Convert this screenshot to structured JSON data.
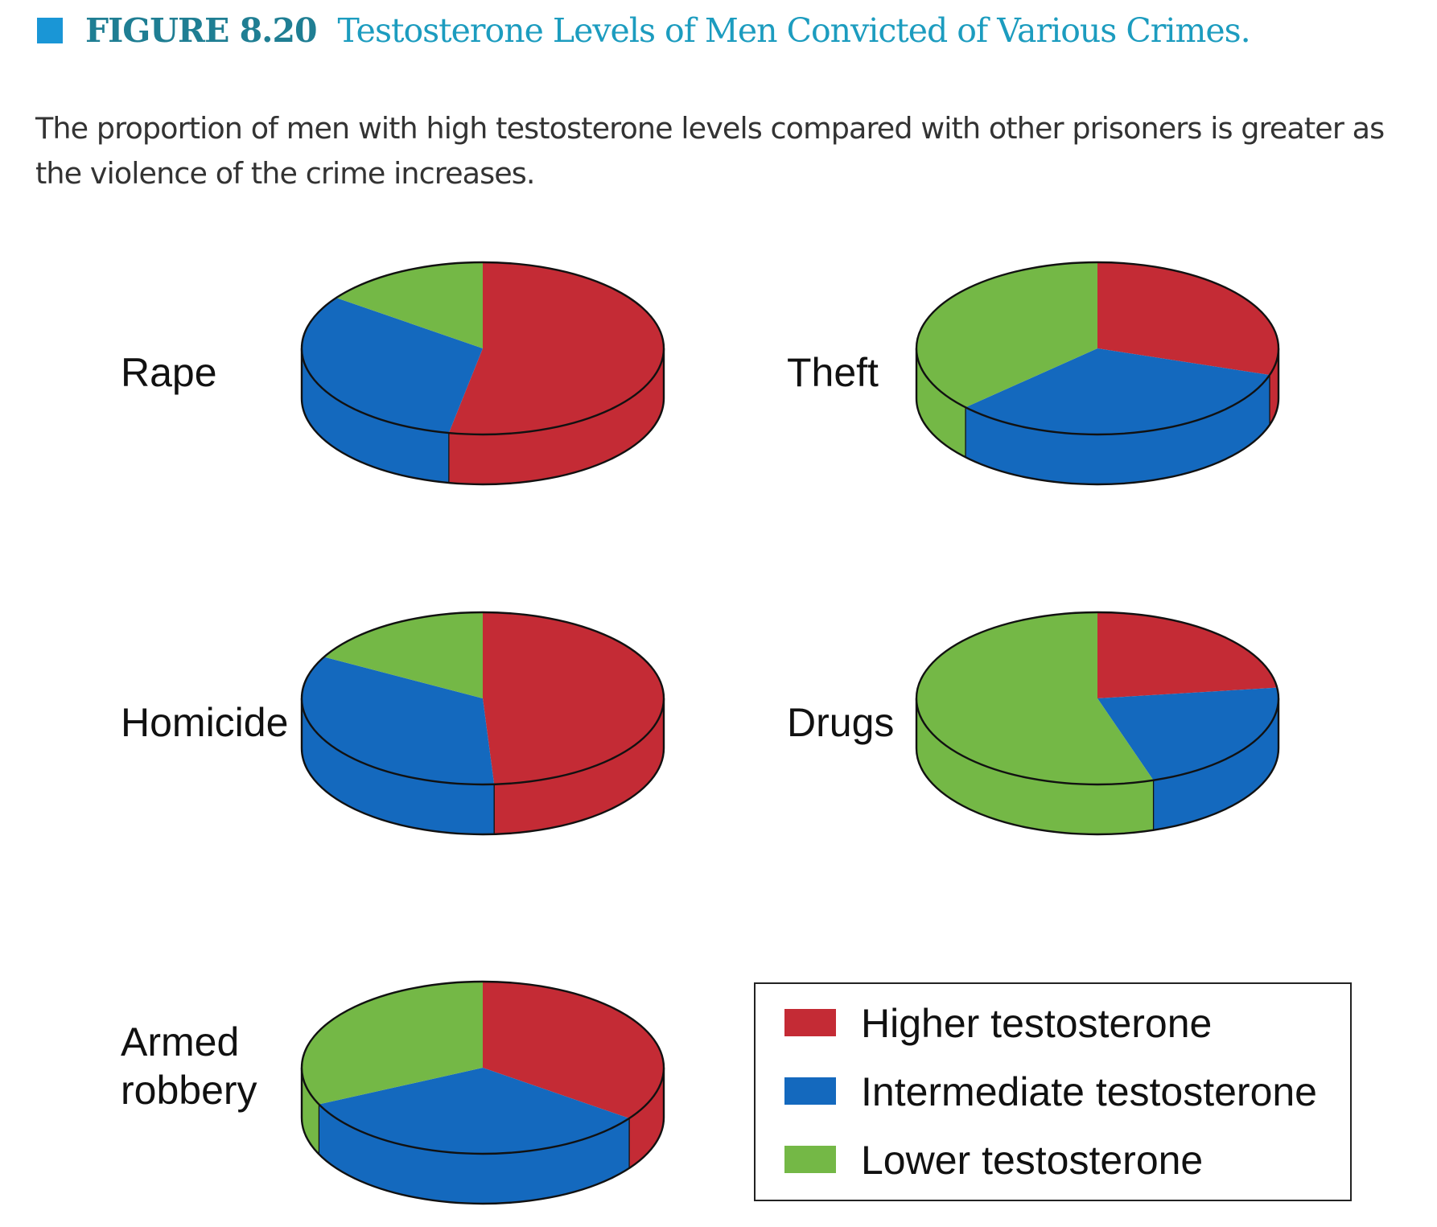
{
  "figure": {
    "number": "FIGURE 8.20",
    "title": "Testosterone Levels of Men Convicted of Various Crimes.",
    "caption": "The proportion of men with high testosterone levels compared with other prisoners is greater as the violence of the crime increases."
  },
  "colors": {
    "higher": "#c42b35",
    "intermediate": "#1469be",
    "lower": "#74b846",
    "outline": "#111111",
    "header_square": "#1a96d6"
  },
  "chart_data": {
    "type": "pie",
    "series_names": [
      "Higher testosterone",
      "Intermediate testosterone",
      "Lower testosterone"
    ],
    "legend": [
      "Higher testosterone",
      "Intermediate testosterone",
      "Lower testosterone"
    ],
    "legend_position": "bottom-right",
    "pies": [
      {
        "label_lines": [
          "Rape"
        ],
        "values": [
          53,
          32,
          15
        ]
      },
      {
        "label_lines": [
          "Theft"
        ],
        "values": [
          30,
          33,
          37
        ]
      },
      {
        "label_lines": [
          "Homicide"
        ],
        "values": [
          49,
          34,
          17
        ]
      },
      {
        "label_lines": [
          "Drugs"
        ],
        "values": [
          23,
          22,
          55
        ]
      },
      {
        "label_lines": [
          "Armed",
          "robbery"
        ],
        "values": [
          35,
          33,
          32
        ]
      }
    ]
  }
}
